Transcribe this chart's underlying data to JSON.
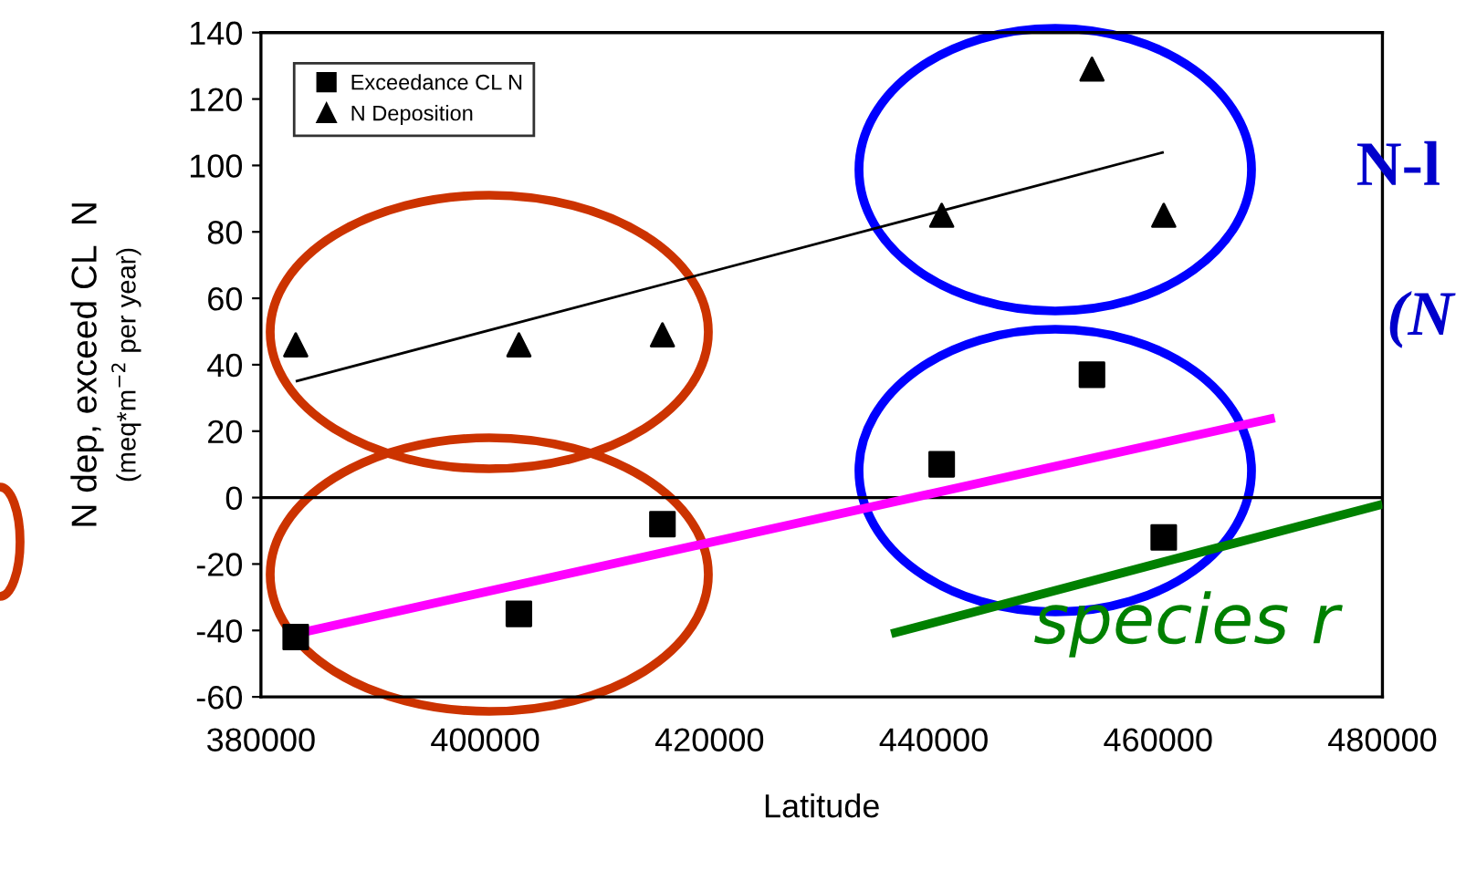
{
  "chart_data": {
    "type": "scatter",
    "xlabel": "Latitude",
    "ylabel": "N dep, exceed CL  N\n(meq*m$^{−2}$ per year)",
    "xlim": [
      380000,
      480000
    ],
    "xticks": [
      380000,
      400000,
      420000,
      440000,
      460000,
      480000
    ],
    "ylim": [
      -60,
      140
    ],
    "yticks": [
      -60,
      -40,
      -20,
      0,
      20,
      40,
      60,
      80,
      100,
      120,
      140
    ],
    "grid": false,
    "legend": "top left",
    "ref_lines": [
      {
        "axis": "y",
        "value": 0,
        "color": "#000000"
      }
    ],
    "series": [
      {
        "name": "Exceedance CL N",
        "color": "#000000",
        "marker": "square",
        "x": [
          383100,
          403000,
          415800,
          440700,
          454100,
          460500
        ],
        "values": [
          -42,
          -35,
          -8,
          10,
          37,
          -12
        ]
      },
      {
        "name": "N Deposition",
        "color": "#000000",
        "marker": "triangle",
        "x": [
          383100,
          403000,
          415800,
          440700,
          454100,
          460500
        ],
        "values": [
          46,
          46,
          49,
          85,
          129,
          85
        ]
      },
      {
        "type": "line",
        "color": "#000000",
        "x": [
          383100,
          460500
        ],
        "values": [
          35,
          104
        ]
      },
      {
        "type": "line",
        "color": "#ff00ff",
        "x": [
          383100,
          470400
        ],
        "values": [
          -41,
          24
        ]
      },
      {
        "type": "line",
        "color": "#008000",
        "x": [
          436200,
          480000
        ],
        "values": [
          -41,
          -2
        ]
      }
    ],
    "annotations": [
      "N-l",
      "(N",
      "species r"
    ]
  }
}
